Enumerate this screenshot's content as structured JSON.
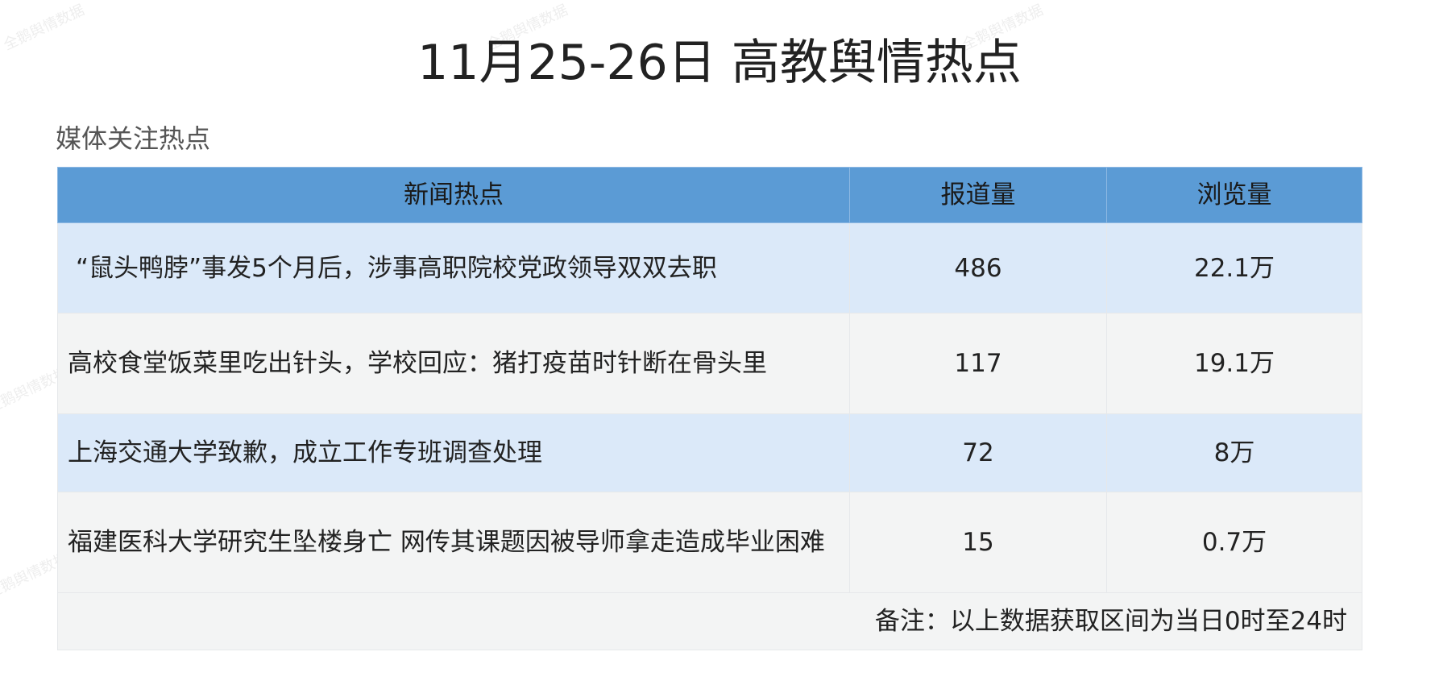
{
  "title": "11月25-26日 高教舆情热点",
  "subtitle": "媒体关注热点",
  "watermark": "全鹅舆情数据",
  "colors": {
    "header": "#5b9bd5",
    "row_blue": "#dbe9f9",
    "row_gray": "#f3f4f4"
  },
  "table": {
    "headers": [
      "新闻热点",
      "报道量",
      "浏览量"
    ],
    "rows": [
      {
        "topic": "“鼠头鸭脖”事发5个月后，涉事高职院校党政领导双双去职",
        "reports": "486",
        "views": "22.1万"
      },
      {
        "topic": "高校食堂饭菜里吃出针头，学校回应：猪打疫苗时针断在骨头里",
        "reports": "117",
        "views": "19.1万"
      },
      {
        "topic": "上海交通大学致歉，成立工作专班调查处理",
        "reports": "72",
        "views": "8万"
      },
      {
        "topic": "福建医科大学研究生坠楼身亡 网传其课题因被导师拿走造成毕业困难",
        "reports": "15",
        "views": "0.7万"
      }
    ],
    "note": "备注：以上数据获取区间为当日0时至24时"
  }
}
